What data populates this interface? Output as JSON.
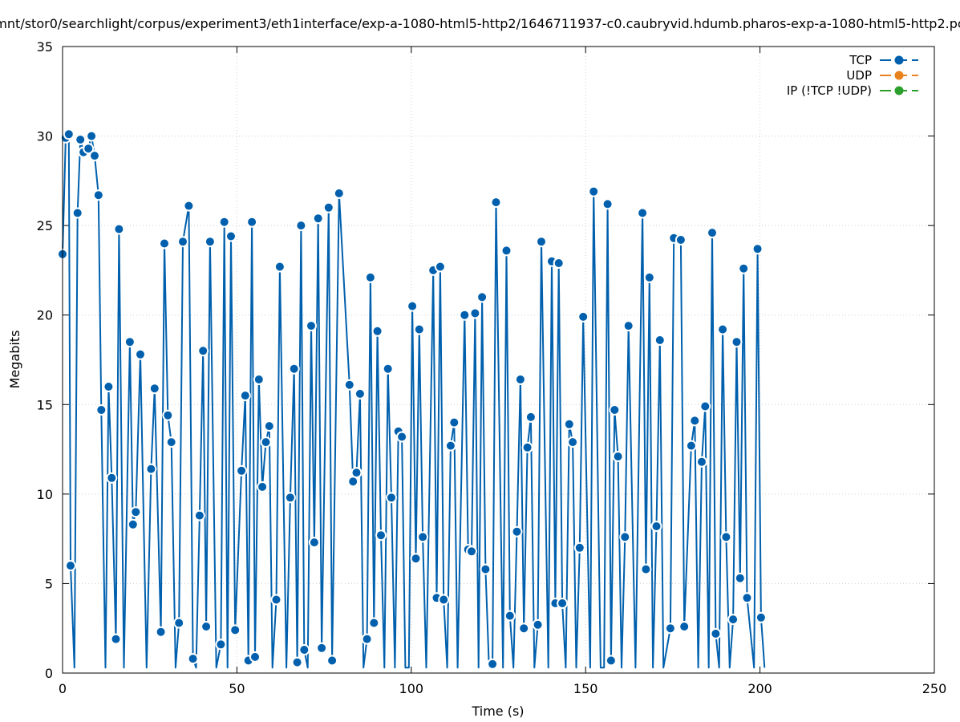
{
  "chart_data": {
    "type": "line",
    "title": "mnt/stor0/searchlight/corpus/experiment3/eth1interface/exp-a-1080-html5-http2/1646711937-c0.caubryvid.hdumb.pharos-exp-a-1080-html5-http2.pc",
    "xlabel": "Time (s)",
    "ylabel": "Megabits",
    "xlim": [
      0,
      250
    ],
    "ylim": [
      0,
      35
    ],
    "x_ticks": [
      0,
      50,
      100,
      150,
      200,
      250
    ],
    "y_ticks": [
      0,
      5,
      10,
      15,
      20,
      25,
      30,
      35
    ],
    "grid": true,
    "legend_position": "top-right",
    "series": [
      {
        "name": "TCP",
        "color": "#0060ad",
        "points": [
          [
            0,
            23.4
          ],
          [
            0.9,
            29.9
          ],
          [
            1.8,
            30.1
          ],
          [
            2.3,
            6.0
          ],
          [
            3.4,
            0.3
          ],
          [
            4.3,
            25.7
          ],
          [
            5.1,
            29.8
          ],
          [
            6.0,
            29.1
          ],
          [
            7.4,
            29.3
          ],
          [
            8.3,
            30.0
          ],
          [
            9.2,
            28.9
          ],
          [
            10.3,
            26.7
          ],
          [
            11.1,
            14.7
          ],
          [
            12.3,
            0.3
          ],
          [
            13.2,
            16.0
          ],
          [
            14.1,
            10.9
          ],
          [
            15.3,
            1.9
          ],
          [
            16.2,
            24.8
          ],
          [
            17.6,
            0.3
          ],
          [
            19.3,
            18.5
          ],
          [
            20.2,
            8.3
          ],
          [
            21.0,
            9.0
          ],
          [
            22.3,
            17.8
          ],
          [
            24.1,
            0.3
          ],
          [
            25.4,
            11.4
          ],
          [
            26.4,
            15.9
          ],
          [
            28.2,
            2.3
          ],
          [
            29.2,
            24.0
          ],
          [
            30.2,
            14.4
          ],
          [
            31.2,
            12.9
          ],
          [
            32.4,
            0.3
          ],
          [
            33.4,
            2.8
          ],
          [
            34.5,
            24.1
          ],
          [
            36.2,
            26.1
          ],
          [
            37.4,
            0.8
          ],
          [
            38.3,
            0.3
          ],
          [
            39.3,
            8.8
          ],
          [
            40.3,
            18.0
          ],
          [
            41.2,
            2.6
          ],
          [
            42.3,
            24.1
          ],
          [
            44.1,
            0.3
          ],
          [
            45.4,
            1.6
          ],
          [
            46.4,
            25.2
          ],
          [
            47.3,
            0.3
          ],
          [
            48.3,
            24.4
          ],
          [
            49.5,
            2.4
          ],
          [
            51.3,
            11.3
          ],
          [
            52.4,
            15.5
          ],
          [
            53.3,
            0.7
          ],
          [
            54.3,
            25.2
          ],
          [
            55.2,
            0.9
          ],
          [
            56.3,
            16.4
          ],
          [
            57.3,
            10.4
          ],
          [
            58.3,
            12.9
          ],
          [
            59.3,
            13.8
          ],
          [
            60.2,
            0.3
          ],
          [
            61.3,
            4.1
          ],
          [
            62.3,
            22.7
          ],
          [
            64.2,
            0.3
          ],
          [
            65.3,
            9.8
          ],
          [
            66.4,
            17.0
          ],
          [
            67.3,
            0.6
          ],
          [
            68.4,
            25.0
          ],
          [
            69.3,
            1.3
          ],
          [
            70.3,
            0.3
          ],
          [
            71.3,
            19.4
          ],
          [
            72.2,
            7.3
          ],
          [
            73.3,
            25.4
          ],
          [
            74.3,
            1.4
          ],
          [
            76.3,
            26.0
          ],
          [
            77.3,
            0.7
          ],
          [
            79.3,
            26.8
          ],
          [
            82.3,
            16.1
          ],
          [
            83.3,
            10.7
          ],
          [
            84.3,
            11.2
          ],
          [
            85.3,
            15.6
          ],
          [
            86.3,
            0.3
          ],
          [
            87.3,
            1.9
          ],
          [
            88.3,
            22.1
          ],
          [
            89.3,
            2.8
          ],
          [
            90.3,
            19.1
          ],
          [
            91.3,
            7.7
          ],
          [
            92.3,
            0.3
          ],
          [
            93.3,
            17.0
          ],
          [
            94.3,
            9.8
          ],
          [
            95.3,
            0.3
          ],
          [
            96.3,
            13.5
          ],
          [
            97.3,
            13.2
          ],
          [
            98.3,
            0.3
          ],
          [
            99.3,
            0.3
          ],
          [
            100.3,
            20.5
          ],
          [
            101.3,
            6.4
          ],
          [
            102.3,
            19.2
          ],
          [
            103.3,
            7.6
          ],
          [
            104.3,
            0.3
          ],
          [
            106.3,
            22.5
          ],
          [
            107.3,
            4.2
          ],
          [
            108.3,
            22.7
          ],
          [
            109.3,
            4.1
          ],
          [
            110.3,
            0.3
          ],
          [
            111.3,
            12.7
          ],
          [
            112.3,
            14.0
          ],
          [
            113.3,
            0.3
          ],
          [
            115.3,
            20.0
          ],
          [
            116.3,
            6.9
          ],
          [
            117.3,
            6.8
          ],
          [
            118.3,
            20.1
          ],
          [
            119.3,
            0.3
          ],
          [
            120.3,
            21.0
          ],
          [
            121.3,
            5.8
          ],
          [
            122.3,
            0.3
          ],
          [
            123.3,
            0.5
          ],
          [
            124.3,
            26.3
          ],
          [
            126.3,
            0.3
          ],
          [
            127.3,
            23.6
          ],
          [
            128.3,
            3.2
          ],
          [
            129.3,
            0.3
          ],
          [
            130.3,
            7.9
          ],
          [
            131.3,
            16.4
          ],
          [
            132.3,
            2.5
          ],
          [
            133.3,
            12.6
          ],
          [
            134.3,
            14.3
          ],
          [
            135.3,
            0.3
          ],
          [
            136.3,
            2.7
          ],
          [
            137.3,
            24.1
          ],
          [
            139.3,
            0.3
          ],
          [
            140.3,
            23.0
          ],
          [
            141.3,
            3.9
          ],
          [
            142.3,
            22.9
          ],
          [
            143.3,
            3.9
          ],
          [
            144.3,
            0.3
          ],
          [
            145.3,
            13.9
          ],
          [
            146.3,
            12.9
          ],
          [
            147.3,
            0.3
          ],
          [
            148.3,
            7.0
          ],
          [
            149.3,
            19.9
          ],
          [
            151.3,
            0.3
          ],
          [
            152.3,
            26.9
          ],
          [
            154.3,
            0.3
          ],
          [
            155.3,
            0.3
          ],
          [
            156.3,
            26.2
          ],
          [
            157.3,
            0.7
          ],
          [
            158.3,
            14.7
          ],
          [
            159.3,
            12.1
          ],
          [
            160.3,
            0.3
          ],
          [
            161.3,
            7.6
          ],
          [
            162.3,
            19.4
          ],
          [
            164.3,
            0.3
          ],
          [
            166.3,
            25.7
          ],
          [
            167.3,
            5.8
          ],
          [
            168.3,
            22.1
          ],
          [
            169.3,
            0.3
          ],
          [
            170.3,
            8.2
          ],
          [
            171.3,
            18.6
          ],
          [
            172.3,
            0.3
          ],
          [
            174.3,
            2.5
          ],
          [
            175.3,
            24.3
          ],
          [
            177.3,
            24.2
          ],
          [
            178.3,
            2.6
          ],
          [
            180.3,
            12.7
          ],
          [
            181.3,
            14.1
          ],
          [
            182.3,
            0.3
          ],
          [
            183.3,
            11.8
          ],
          [
            184.3,
            14.9
          ],
          [
            185.3,
            0.3
          ],
          [
            186.3,
            24.6
          ],
          [
            187.3,
            2.2
          ],
          [
            188.3,
            0.3
          ],
          [
            189.3,
            19.2
          ],
          [
            190.3,
            7.6
          ],
          [
            191.3,
            0.3
          ],
          [
            192.3,
            3.0
          ],
          [
            193.3,
            18.5
          ],
          [
            194.3,
            5.3
          ],
          [
            195.3,
            22.6
          ],
          [
            196.3,
            4.2
          ],
          [
            198.3,
            0.3
          ],
          [
            199.3,
            23.7
          ],
          [
            200.3,
            3.1
          ],
          [
            201.3,
            0.3
          ]
        ]
      },
      {
        "name": "UDP",
        "color": "#e8821e",
        "points": []
      },
      {
        "name": "IP (!TCP  !UDP)",
        "color": "#2ca02c",
        "points": [
          [
            204.3,
            0
          ]
        ]
      }
    ]
  }
}
